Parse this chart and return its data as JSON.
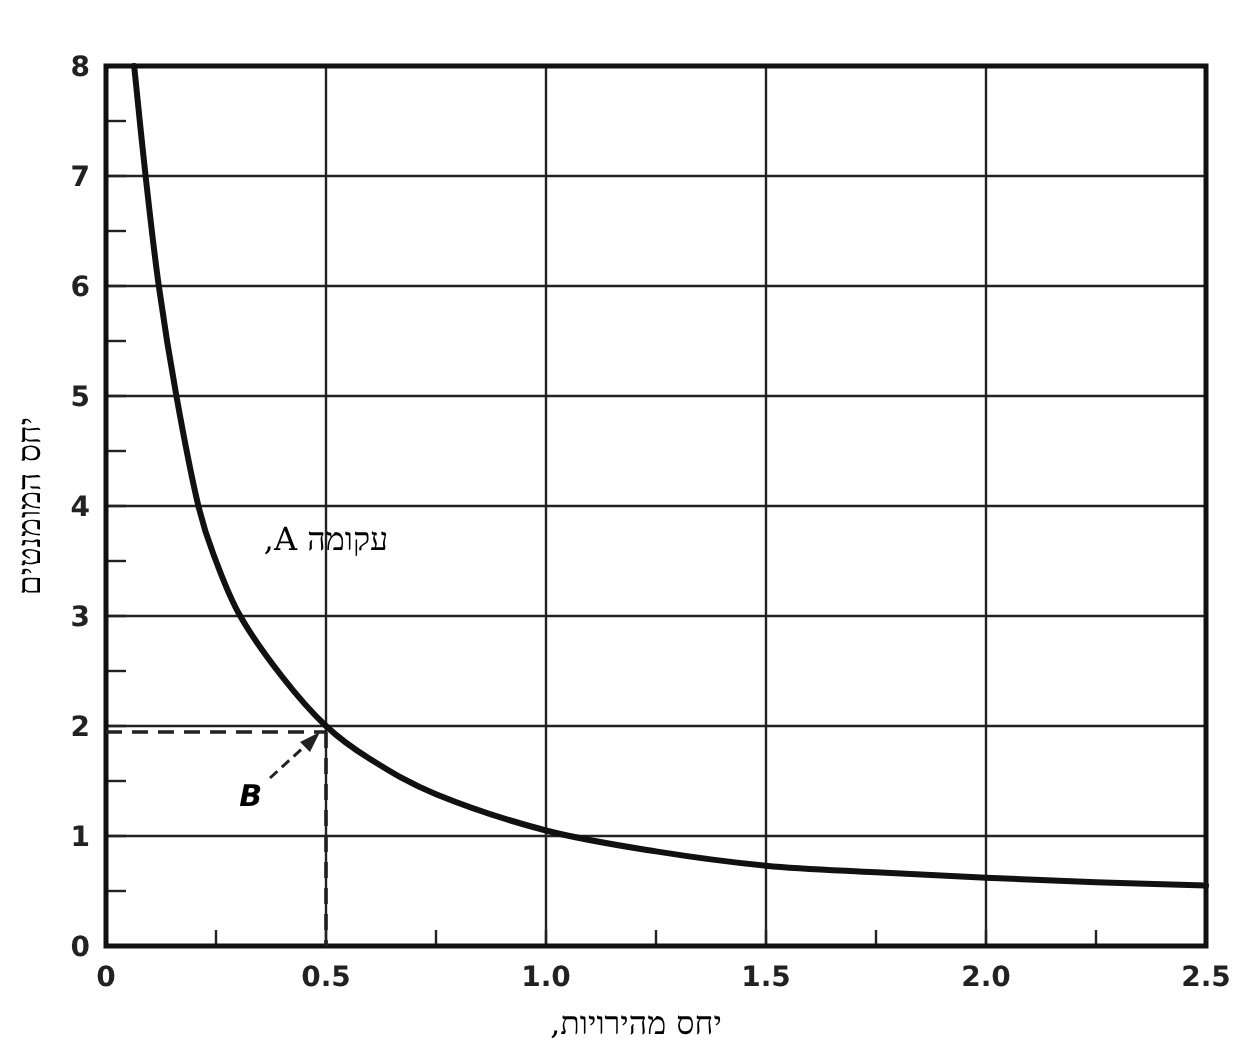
{
  "chart_data": {
    "type": "line",
    "xlabel": "יחס מהירויות,",
    "ylabel": "יחס המומנטים",
    "x": [
      0.064,
      0.09,
      0.12,
      0.16,
      0.21,
      0.25,
      0.305,
      0.4,
      0.5,
      0.6,
      0.75,
      1.0,
      1.25,
      1.5,
      1.75,
      2.0,
      2.25,
      2.5
    ],
    "series": [
      {
        "color": "#111111",
        "values": [
          8,
          7,
          6,
          5,
          4,
          3.5,
          3,
          2.45,
          2,
          1.7,
          1.38,
          1.05,
          0.86,
          0.73,
          0.67,
          0.62,
          0.58,
          0.55
        ]
      }
    ],
    "xlim": [
      0,
      2.5
    ],
    "ylim": [
      0,
      8
    ],
    "xticks": [
      0,
      {
        "value": 0.25,
        "label": null
      },
      0.5,
      {
        "value": 0.75,
        "label": null
      },
      {
        "value": 1,
        "label": "1.0"
      },
      {
        "value": 1.25,
        "label": null
      },
      1.5,
      {
        "value": 1.75,
        "label": null
      },
      {
        "value": 2,
        "label": "2.0"
      },
      {
        "value": 2.25,
        "label": null
      },
      2.5
    ],
    "yticks": [
      0,
      {
        "value": 0.5,
        "label": null
      },
      1,
      {
        "value": 1.5,
        "label": null
      },
      2,
      {
        "value": 2.5,
        "label": null
      },
      3,
      {
        "value": 3.5,
        "label": null
      },
      4,
      {
        "value": 4.5,
        "label": null
      },
      5,
      {
        "value": 5.5,
        "label": null
      },
      6,
      {
        "value": 6.5,
        "label": null
      },
      7,
      {
        "value": 7.5,
        "label": null
      },
      8
    ],
    "annotations": [
      "עקומה A,",
      {
        "text": "B",
        "x": 0.5,
        "y": 2
      }
    ],
    "grid": true,
    "marker": "none",
    "line_style": "solid"
  }
}
